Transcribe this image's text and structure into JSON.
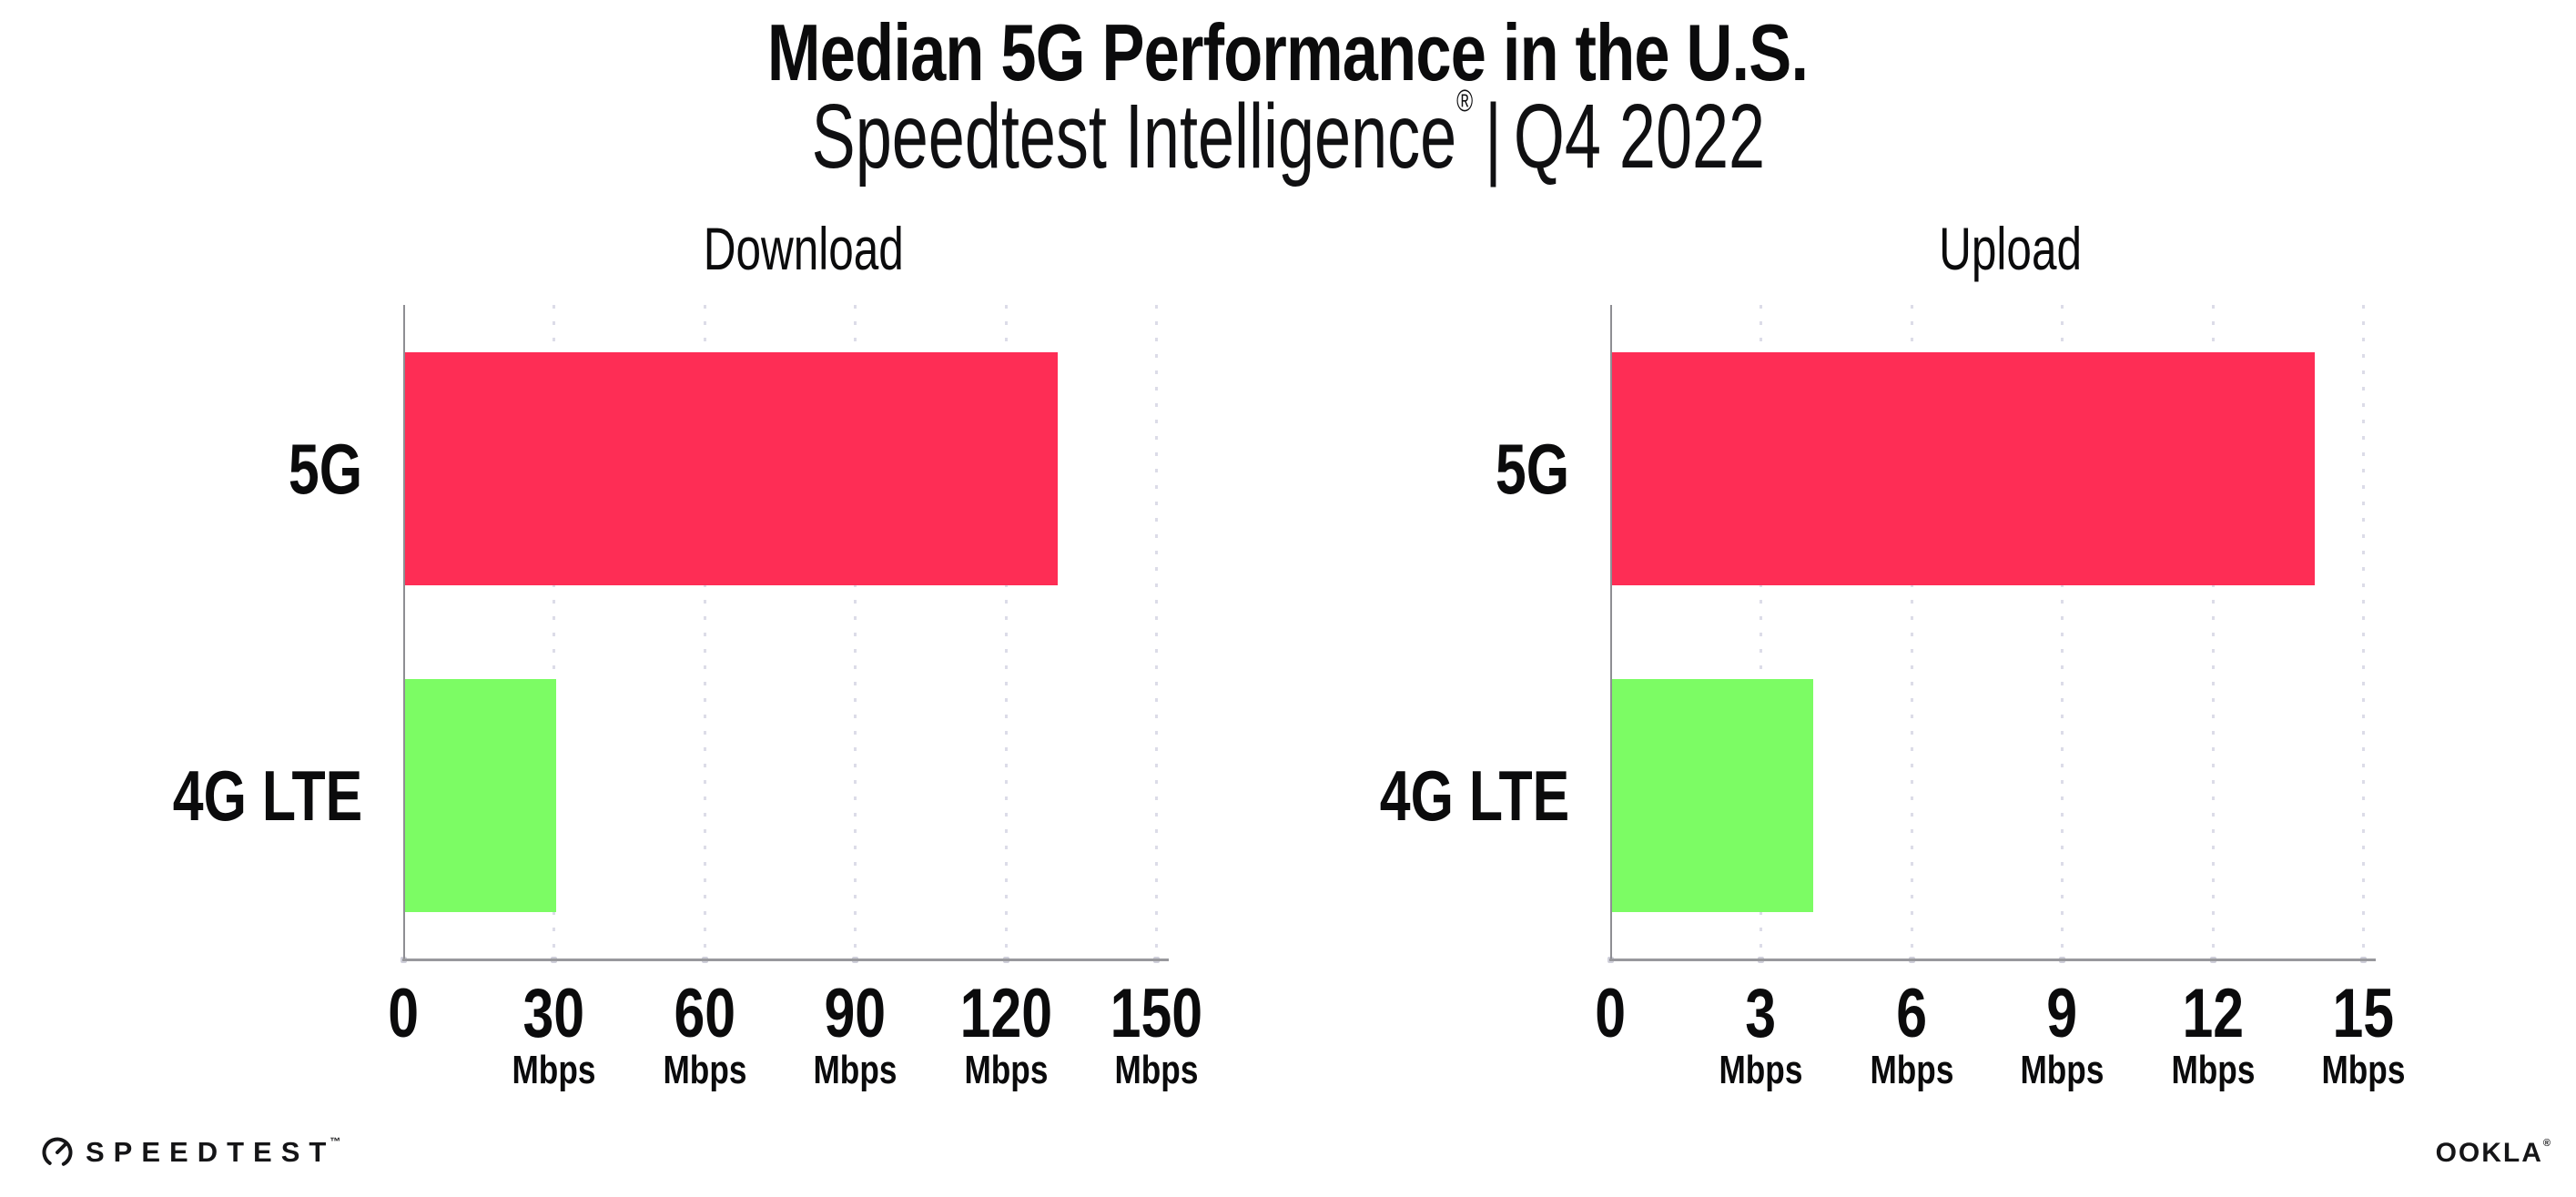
{
  "header": {
    "title": "Median 5G Performance in the U.S.",
    "subtitle_brand": "Speedtest Intelligence",
    "subtitle_reg": "®",
    "subtitle_separator": "|",
    "subtitle_period": "Q4 2022"
  },
  "colors": {
    "bar_5g": "#FE2D55",
    "bar_4g_lte": "#7CFC64",
    "gridline": "#DCDCE8",
    "y_axis": "#8E8E93",
    "x_axis": "#98989D",
    "text": "#0B0B0C"
  },
  "chart_data": [
    {
      "type": "bar",
      "orientation": "horizontal",
      "title": "Download",
      "categories": [
        "5G",
        "4G LTE"
      ],
      "values": [
        130,
        30
      ],
      "unit": "Mbps",
      "xlim": [
        0,
        150
      ],
      "xticks": [
        0,
        30,
        60,
        90,
        120,
        150
      ],
      "tick_unit_label": "Mbps",
      "grid": "vertical-dotted",
      "legend": "none",
      "bar_colors": [
        "#FE2D55",
        "#7CFC64"
      ]
    },
    {
      "type": "bar",
      "orientation": "horizontal",
      "title": "Upload",
      "categories": [
        "5G",
        "4G LTE"
      ],
      "values": [
        14,
        4
      ],
      "unit": "Mbps",
      "xlim": [
        0,
        15
      ],
      "xticks": [
        0,
        3,
        6,
        9,
        12,
        15
      ],
      "tick_unit_label": "Mbps",
      "grid": "vertical-dotted",
      "legend": "none",
      "bar_colors": [
        "#FE2D55",
        "#7CFC64"
      ]
    }
  ],
  "footer": {
    "speedtest_logo_text": "SPEEDTEST",
    "speedtest_tm": "™",
    "ookla_logo_text": "OOKLA",
    "ookla_reg": "®"
  }
}
